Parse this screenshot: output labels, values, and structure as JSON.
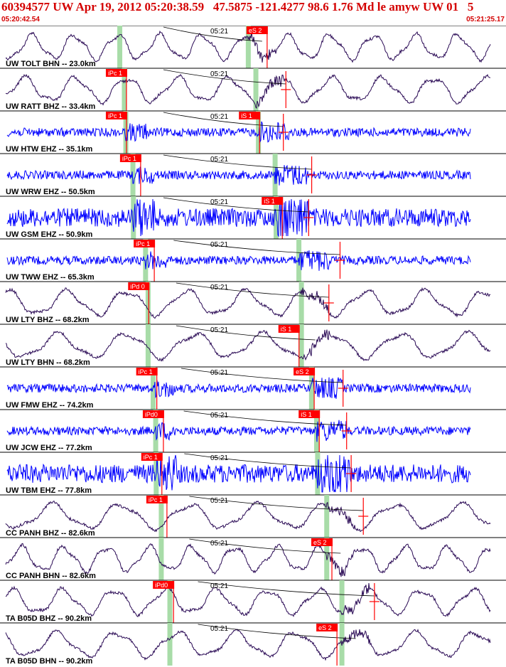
{
  "header": {
    "title": "60394577 UW Apr 19, 2012 05:20:38.59   47.5875 -121.4277 98.6 1.76 Md le amyw UW 01   5",
    "start_time": "05:20:42.54",
    "end_time": "05:21:25.17"
  },
  "colors": {
    "header_text": "#d40000",
    "pick_box": "#ff0000",
    "broadband_trace": "#2a0a55",
    "shortperiod_trace": "#0000ff",
    "phase_band": "#a8dca8",
    "travel_curve": "#000000"
  },
  "center_time_label": "05:21",
  "traces": [
    {
      "label": "UW TOLT BHN -- 23.0km",
      "type": "broadband",
      "picks": [
        {
          "text": "eS 2",
          "pos": 0.49
        }
      ],
      "bands": [
        0.236,
        0.49
      ],
      "residual": null
    },
    {
      "label": "UW RATT BHZ -- 33.4km",
      "type": "broadband",
      "picks": [
        {
          "text": "iPc 1",
          "pos": 0.212
        }
      ],
      "bands": [
        0.245,
        0.505
      ],
      "residual": 0.565
    },
    {
      "label": "UW HTW EHZ -- 35.1km",
      "type": "shortperiod",
      "picks": [
        {
          "text": "iPc 1",
          "pos": 0.212
        },
        {
          "text": "iS 1",
          "pos": 0.475
        }
      ],
      "bands": [
        0.248,
        0.51
      ],
      "residual": 0.56
    },
    {
      "label": "UW WRW EHZ -- 50.5km",
      "type": "shortperiod",
      "picks": [
        {
          "text": "iPc 1",
          "pos": 0.24
        }
      ],
      "bands": [
        0.262,
        0.543
      ],
      "residual": 0.616
    },
    {
      "label": "UW GSM EHZ -- 50.9km",
      "type": "shortperiod",
      "picks": [
        {
          "text": "iS 1",
          "pos": 0.52
        }
      ],
      "bands": [
        0.263,
        0.545
      ],
      "residual": 0.61
    },
    {
      "label": "UW TWW EHZ -- 65.3km",
      "type": "shortperiod",
      "picks": [
        {
          "text": "iPc 1",
          "pos": 0.267
        }
      ],
      "bands": [
        0.287,
        0.59
      ],
      "residual": 0.672
    },
    {
      "label": "UW LTY BHZ -- 68.2km",
      "type": "broadband",
      "picks": [
        {
          "text": "iPd 0",
          "pos": 0.256
        }
      ],
      "bands": [
        0.292,
        0.595
      ],
      "residual": 0.65
    },
    {
      "label": "UW LTY BHN -- 68.2km",
      "type": "broadband",
      "picks": [
        {
          "text": "iS 1",
          "pos": 0.553
        }
      ],
      "bands": [
        0.292,
        0.595
      ],
      "residual": null
    },
    {
      "label": "UW FMW EHZ -- 74.2km",
      "type": "shortperiod",
      "picks": [
        {
          "text": "iPc 1",
          "pos": 0.272
        },
        {
          "text": "eS 2",
          "pos": 0.583
        }
      ],
      "bands": [
        0.302,
        0.615
      ],
      "residual": 0.678
    },
    {
      "label": "UW JCW EHZ -- 77.2km",
      "type": "shortperiod",
      "picks": [
        {
          "text": "iPd0",
          "pos": 0.285
        },
        {
          "text": "iS 1",
          "pos": 0.593
        }
      ],
      "bands": [
        0.307,
        0.625
      ],
      "residual": 0.685
    },
    {
      "label": "UW TBM EHZ -- 77.8km",
      "type": "shortperiod",
      "picks": [
        {
          "text": "iPc 1",
          "pos": 0.282
        }
      ],
      "bands": [
        0.308,
        0.627
      ],
      "residual": 0.694
    },
    {
      "label": "CC PANH BHZ -- 82.6km",
      "type": "broadband",
      "picks": [
        {
          "text": "iPc 1",
          "pos": 0.292
        }
      ],
      "bands": [
        0.318,
        0.645
      ],
      "residual": 0.718
    },
    {
      "label": "CC PANH BHN -- 82.6km",
      "type": "broadband",
      "picks": [
        {
          "text": "eS 2",
          "pos": 0.618
        }
      ],
      "bands": [
        0.318,
        0.645
      ],
      "residual": null
    },
    {
      "label": "TA B05D BHZ -- 90.2km",
      "type": "broadband",
      "picks": [
        {
          "text": "iPd0",
          "pos": 0.305
        }
      ],
      "bands": [
        0.335,
        0.675
      ],
      "residual": 0.74
    },
    {
      "label": "TA B05D BHN -- 90.2km",
      "type": "broadband",
      "picks": [
        {
          "text": "eS 2",
          "pos": 0.628
        }
      ],
      "bands": [
        0.335,
        0.675
      ],
      "residual": null
    }
  ]
}
